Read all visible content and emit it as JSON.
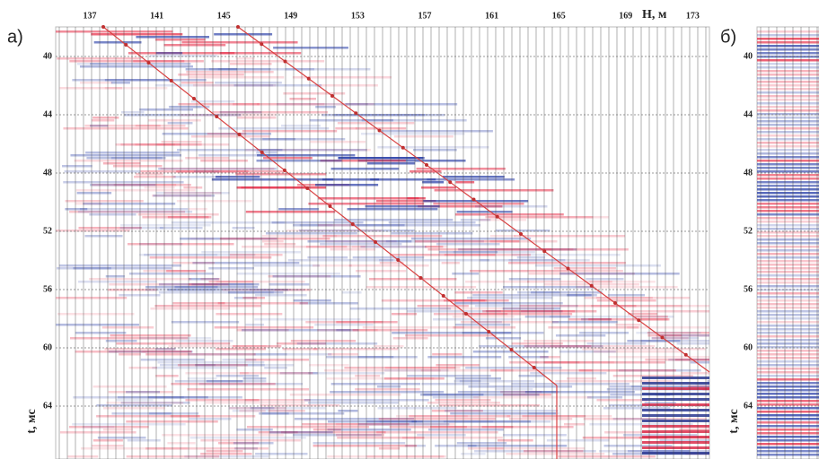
{
  "panels": [
    {
      "label": "а)",
      "x_label": "H, м",
      "y_label": "t, мс",
      "x_ticks": [
        137,
        141,
        145,
        149,
        153,
        157,
        161,
        165,
        169,
        173
      ],
      "y_ticks": [
        40,
        44,
        48,
        52,
        56,
        60,
        64
      ]
    },
    {
      "label": "б)",
      "y_label": "t, мс",
      "y_ticks": [
        40,
        44,
        48,
        52,
        56,
        60,
        64
      ]
    }
  ]
}
